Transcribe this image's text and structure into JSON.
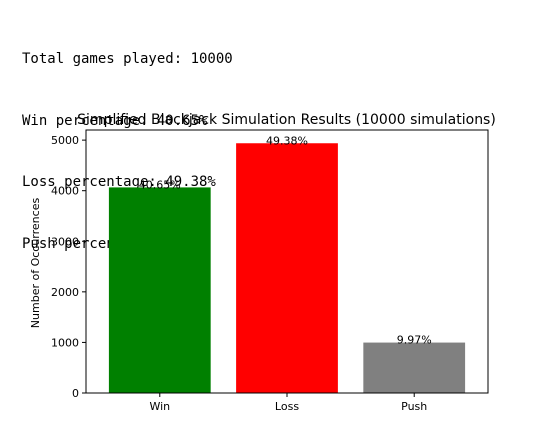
{
  "output": {
    "lines": [
      "Total games played: 10000",
      "Win percentage: 40.65%",
      "Loss percentage: 49.38%",
      "Push percentage: 9.97%"
    ]
  },
  "chart_data": {
    "type": "bar",
    "title": "Simplified Blackjack Simulation Results (10000 simulations)",
    "xlabel": "",
    "ylabel": "Number of Occurrences",
    "categories": [
      "Win",
      "Loss",
      "Push"
    ],
    "values": [
      4065,
      4938,
      997
    ],
    "data_labels": [
      "40.65%",
      "49.38%",
      "9.97%"
    ],
    "colors": [
      "#008000",
      "#ff0000",
      "#808080"
    ],
    "ylim": [
      0,
      5200
    ],
    "yticks": [
      0,
      1000,
      2000,
      3000,
      4000,
      5000
    ],
    "grid": false,
    "legend": "none"
  }
}
